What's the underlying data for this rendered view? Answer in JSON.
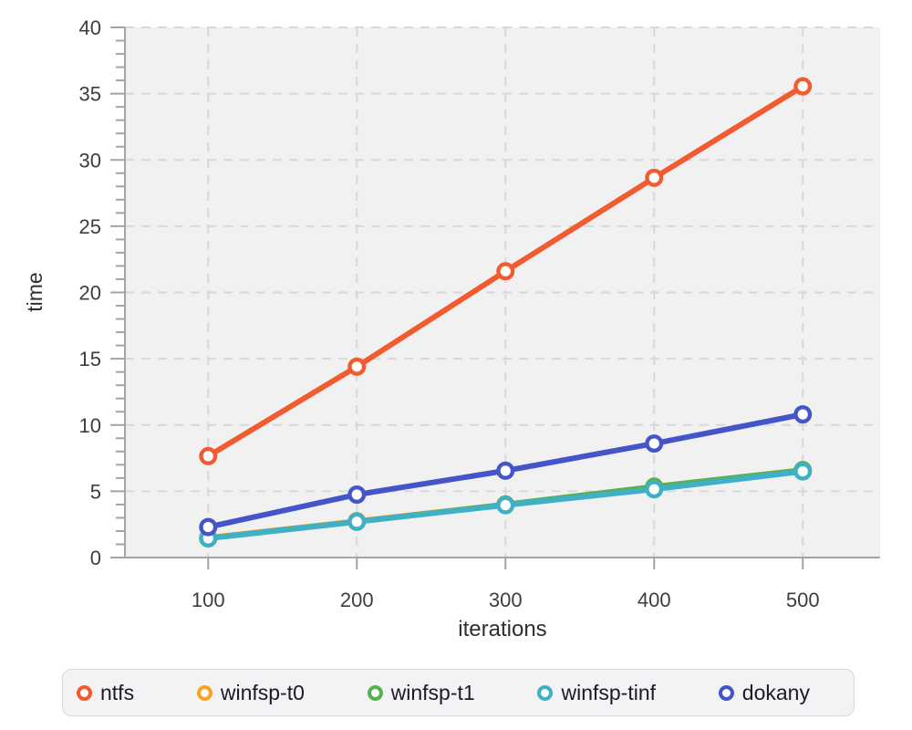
{
  "chart_data": {
    "type": "line",
    "title": "",
    "xlabel": "iterations",
    "ylabel": "time",
    "x": [
      100,
      200,
      300,
      400,
      500
    ],
    "xticks": [
      100,
      200,
      300,
      400,
      500
    ],
    "yticks": [
      0,
      5,
      10,
      15,
      20,
      25,
      30,
      35,
      40
    ],
    "y_minor_tick_step": 1,
    "xlim": [
      44,
      552
    ],
    "ylim": [
      0,
      40
    ],
    "grid": "dashed",
    "legend_position": "bottom",
    "series": [
      {
        "name": "ntfs",
        "color": "#f15b2f",
        "marker": "open-circle",
        "values": [
          7.65,
          14.4,
          21.6,
          28.65,
          35.55
        ]
      },
      {
        "name": "winfsp-t0",
        "color": "#f7a521",
        "marker": "open-circle",
        "values": [
          1.5,
          2.75,
          4.0,
          5.25,
          6.5
        ]
      },
      {
        "name": "winfsp-t1",
        "color": "#57b14d",
        "marker": "open-circle",
        "values": [
          1.45,
          2.7,
          4.0,
          5.35,
          6.6
        ]
      },
      {
        "name": "winfsp-tinf",
        "color": "#3fb0c6",
        "marker": "open-circle",
        "values": [
          1.45,
          2.7,
          3.95,
          5.15,
          6.5
        ]
      },
      {
        "name": "dokany",
        "color": "#4355c8",
        "marker": "open-circle",
        "values": [
          2.3,
          4.75,
          6.55,
          8.6,
          10.8
        ]
      }
    ],
    "colors": {
      "plot_background": "#f1f1f2",
      "gridline": "#d8d8da",
      "axis": "#a3a3a8",
      "tick_label": "#3d3d3d",
      "axis_title": "#2f2f2f",
      "legend_text": "#1b1b22",
      "legend_background": "#f3f3f5",
      "legend_border": "#d8d8dc"
    }
  }
}
